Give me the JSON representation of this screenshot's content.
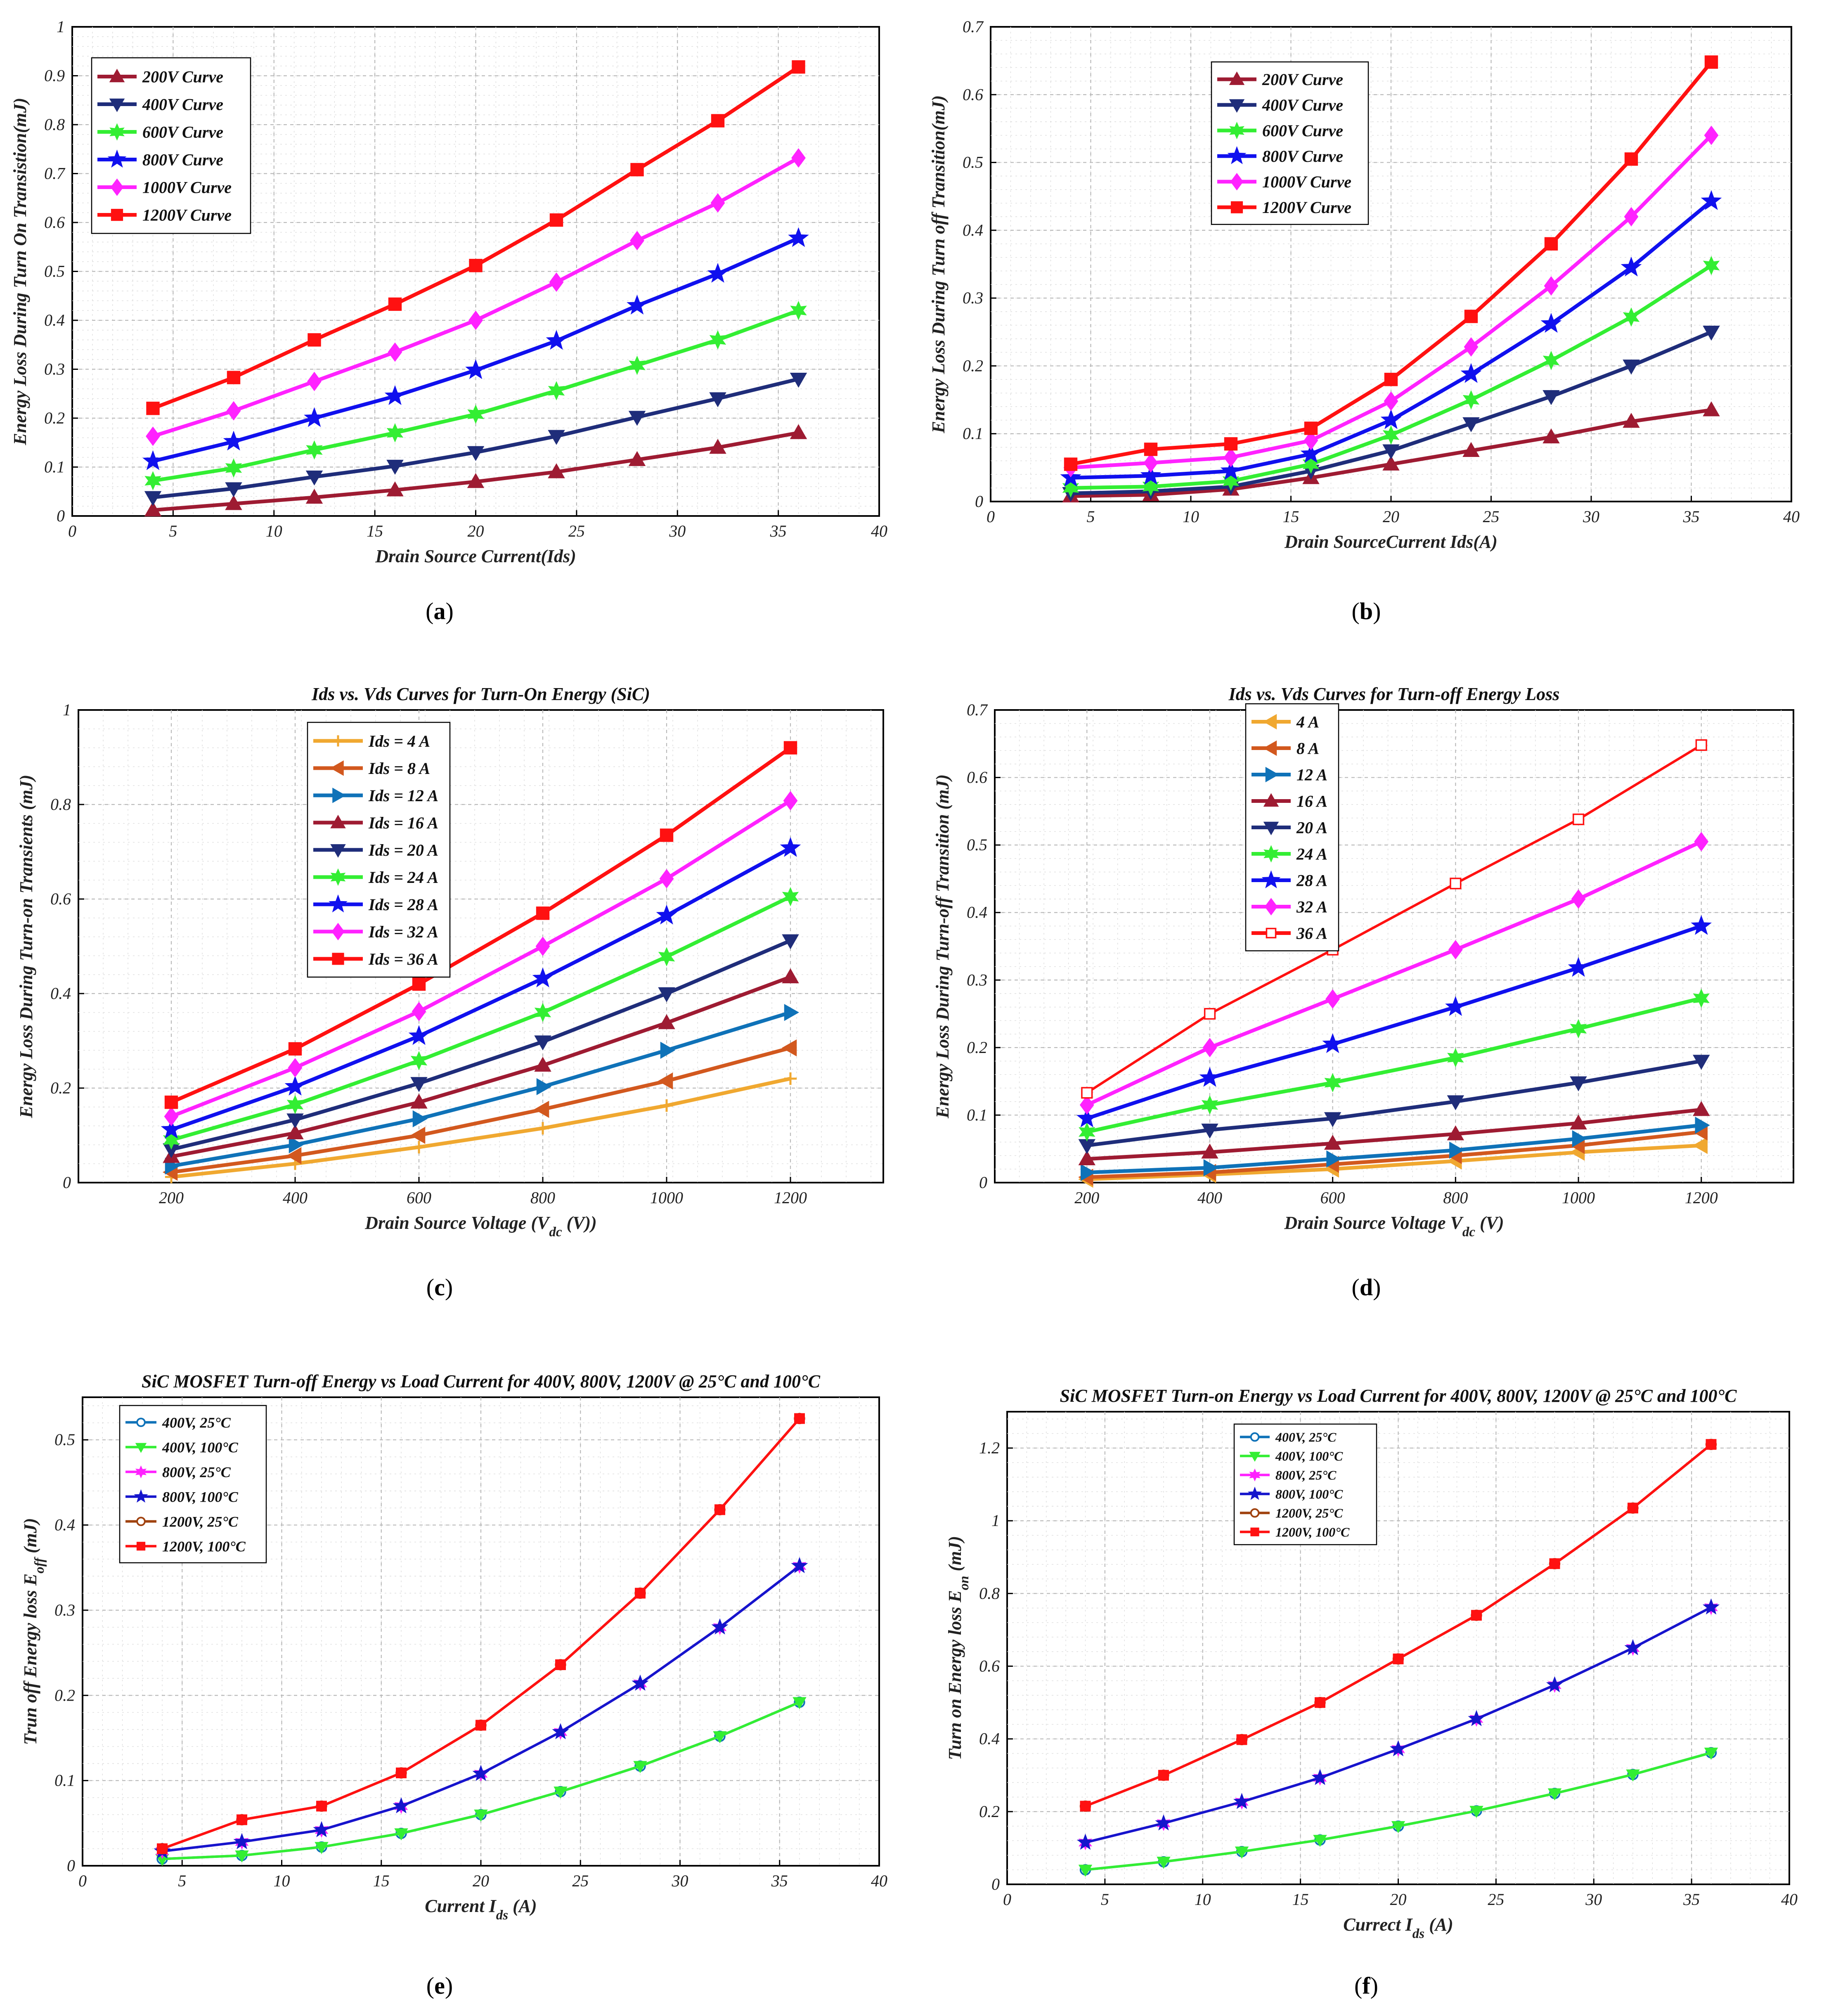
{
  "figure": {
    "captions": [
      {
        "open": "(",
        "letter": "a",
        "close": ")"
      },
      {
        "open": "(",
        "letter": "b",
        "close": ")"
      },
      {
        "open": "(",
        "letter": "c",
        "close": ")"
      },
      {
        "open": "(",
        "letter": "d",
        "close": ")"
      },
      {
        "open": "(",
        "letter": "e",
        "close": ")"
      },
      {
        "open": "(",
        "letter": "f",
        "close": ")"
      }
    ]
  },
  "chart_data": [
    {
      "id": "a",
      "type": "line",
      "title": "",
      "xlabel": [
        {
          "t": "Drain Source Current(Ids)"
        }
      ],
      "ylabel": [
        {
          "t": "Energy Loss During Turn On Transistion(mJ)"
        }
      ],
      "xlim": [
        0,
        40
      ],
      "ylim": [
        0,
        1
      ],
      "xticks": [
        0,
        5,
        10,
        15,
        20,
        25,
        30,
        35,
        40
      ],
      "yticks": [
        0,
        0.1,
        0.2,
        0.3,
        0.4,
        0.5,
        0.6,
        0.7,
        0.8,
        0.9,
        1
      ],
      "grid": true,
      "legend_position": "top-left",
      "x": [
        4,
        8,
        12,
        16,
        20,
        24,
        28,
        32,
        36
      ],
      "series": [
        {
          "name": "200V Curve",
          "color": "#9e1b32",
          "marker": "triangle-up",
          "values": [
            0.012,
            0.025,
            0.038,
            0.053,
            0.07,
            0.09,
            0.115,
            0.14,
            0.17
          ]
        },
        {
          "name": "400V Curve",
          "color": "#1f2d7a",
          "marker": "triangle-down",
          "values": [
            0.038,
            0.056,
            0.08,
            0.102,
            0.13,
            0.163,
            0.202,
            0.24,
            0.28
          ]
        },
        {
          "name": "600V Curve",
          "color": "#33ee33",
          "marker": "star6",
          "values": [
            0.072,
            0.098,
            0.135,
            0.17,
            0.208,
            0.256,
            0.308,
            0.36,
            0.42
          ]
        },
        {
          "name": "800V Curve",
          "color": "#1010ee",
          "marker": "star5",
          "values": [
            0.112,
            0.152,
            0.2,
            0.245,
            0.298,
            0.358,
            0.43,
            0.495,
            0.568
          ]
        },
        {
          "name": "1000V Curve",
          "color": "#ff22ff",
          "marker": "diamond",
          "values": [
            0.163,
            0.215,
            0.275,
            0.335,
            0.4,
            0.478,
            0.563,
            0.64,
            0.732
          ]
        },
        {
          "name": "1200V Curve",
          "color": "#ff1111",
          "marker": "square",
          "values": [
            0.22,
            0.283,
            0.36,
            0.433,
            0.512,
            0.605,
            0.708,
            0.808,
            0.918
          ]
        }
      ]
    },
    {
      "id": "b",
      "type": "line",
      "title": "",
      "xlabel": [
        {
          "t": "Drain SourceCurrent Ids(A)"
        }
      ],
      "ylabel": [
        {
          "t": "Energy Loss During Turn off Transition(mJ)"
        }
      ],
      "xlim": [
        0,
        40
      ],
      "ylim": [
        0,
        0.7
      ],
      "xticks": [
        0,
        5,
        10,
        15,
        20,
        25,
        30,
        35,
        40
      ],
      "yticks": [
        0,
        0.1,
        0.2,
        0.3,
        0.4,
        0.5,
        0.6,
        0.7
      ],
      "grid": true,
      "legend_position": "top-left",
      "x": [
        4,
        8,
        12,
        16,
        20,
        24,
        28,
        32,
        36
      ],
      "series": [
        {
          "name": "200V Curve",
          "color": "#9e1b32",
          "marker": "triangle-up",
          "values": [
            0.008,
            0.01,
            0.018,
            0.035,
            0.055,
            0.075,
            0.095,
            0.118,
            0.135
          ]
        },
        {
          "name": "400V Curve",
          "color": "#1f2d7a",
          "marker": "triangle-down",
          "values": [
            0.012,
            0.015,
            0.022,
            0.045,
            0.075,
            0.115,
            0.155,
            0.2,
            0.25
          ]
        },
        {
          "name": "600V Curve",
          "color": "#33ee33",
          "marker": "star6",
          "values": [
            0.02,
            0.022,
            0.03,
            0.055,
            0.098,
            0.15,
            0.208,
            0.272,
            0.348
          ]
        },
        {
          "name": "800V Curve",
          "color": "#1010ee",
          "marker": "star5",
          "values": [
            0.035,
            0.038,
            0.045,
            0.07,
            0.12,
            0.188,
            0.262,
            0.345,
            0.443
          ]
        },
        {
          "name": "1000V Curve",
          "color": "#ff22ff",
          "marker": "diamond",
          "values": [
            0.05,
            0.057,
            0.065,
            0.09,
            0.148,
            0.228,
            0.318,
            0.42,
            0.54
          ]
        },
        {
          "name": "1200V Curve",
          "color": "#ff1111",
          "marker": "square",
          "values": [
            0.055,
            0.077,
            0.085,
            0.108,
            0.18,
            0.273,
            0.38,
            0.505,
            0.648
          ]
        }
      ]
    },
    {
      "id": "c",
      "type": "line",
      "title": "Ids vs. Vds Curves for Turn-On Energy (SiC)",
      "xlabel": [
        {
          "t": "Drain Source Voltage ("
        },
        {
          "t": "V"
        },
        {
          "t": "dc",
          "sub": true
        },
        {
          "t": " (V))"
        }
      ],
      "ylabel": [
        {
          "t": "Energy Loss During Turn-on Transients (mJ)"
        }
      ],
      "xlim": [
        50,
        1350
      ],
      "ylim": [
        0,
        1
      ],
      "xticks": [
        200,
        400,
        600,
        800,
        1000,
        1200
      ],
      "yticks": [
        0,
        0.2,
        0.4,
        0.6,
        0.8,
        1
      ],
      "grid": true,
      "legend_position": "top-center",
      "x": [
        200,
        400,
        600,
        800,
        1000,
        1200
      ],
      "series": [
        {
          "name": "Ids = 4 A",
          "color": "#f0a830",
          "marker": "plus",
          "values": [
            0.012,
            0.04,
            0.075,
            0.115,
            0.163,
            0.22
          ]
        },
        {
          "name": "Ids = 8 A",
          "color": "#d2581e",
          "marker": "triangle-left",
          "values": [
            0.022,
            0.057,
            0.1,
            0.155,
            0.215,
            0.285
          ]
        },
        {
          "name": "Ids = 12 A",
          "color": "#0f72b8",
          "marker": "triangle-right",
          "values": [
            0.035,
            0.08,
            0.135,
            0.203,
            0.28,
            0.36
          ]
        },
        {
          "name": "Ids = 16 A",
          "color": "#9e1b32",
          "marker": "triangle-up",
          "values": [
            0.055,
            0.105,
            0.17,
            0.248,
            0.338,
            0.435
          ]
        },
        {
          "name": "Ids = 20 A",
          "color": "#1f2d7a",
          "marker": "triangle-down",
          "values": [
            0.07,
            0.133,
            0.21,
            0.298,
            0.4,
            0.512
          ]
        },
        {
          "name": "Ids = 24 A",
          "color": "#33ee33",
          "marker": "star6",
          "values": [
            0.09,
            0.165,
            0.258,
            0.36,
            0.478,
            0.605
          ]
        },
        {
          "name": "Ids = 28 A",
          "color": "#1010ee",
          "marker": "star5",
          "values": [
            0.112,
            0.203,
            0.31,
            0.432,
            0.565,
            0.708
          ]
        },
        {
          "name": "Ids = 32 A",
          "color": "#ff22ff",
          "marker": "diamond",
          "values": [
            0.14,
            0.243,
            0.362,
            0.5,
            0.643,
            0.808
          ]
        },
        {
          "name": "Ids = 36 A",
          "color": "#ff1111",
          "marker": "square",
          "values": [
            0.17,
            0.283,
            0.42,
            0.57,
            0.735,
            0.92
          ]
        }
      ]
    },
    {
      "id": "d",
      "type": "line",
      "title": "Ids vs. Vds Curves for Turn-off Energy Loss",
      "xlabel": [
        {
          "t": "Drain Source Voltage "
        },
        {
          "t": "V"
        },
        {
          "t": "dc",
          "sub": true
        },
        {
          "t": " (V)"
        }
      ],
      "ylabel": [
        {
          "t": "Energy Loss During Turn-off Transition (mJ)"
        }
      ],
      "xlim": [
        50,
        1350
      ],
      "ylim": [
        0,
        0.7
      ],
      "xticks": [
        200,
        400,
        600,
        800,
        1000,
        1200
      ],
      "yticks": [
        0,
        0.1,
        0.2,
        0.3,
        0.4,
        0.5,
        0.6,
        0.7
      ],
      "grid": true,
      "legend_position": "top-left",
      "x": [
        200,
        400,
        600,
        800,
        1000,
        1200
      ],
      "series": [
        {
          "name": "4 A",
          "color": "#f0a830",
          "marker": "triangle-left",
          "values": [
            0.005,
            0.012,
            0.02,
            0.032,
            0.045,
            0.055
          ]
        },
        {
          "name": "8 A",
          "color": "#d2581e",
          "marker": "triangle-left",
          "values": [
            0.008,
            0.015,
            0.027,
            0.04,
            0.055,
            0.075
          ]
        },
        {
          "name": "12 A",
          "color": "#0f72b8",
          "marker": "triangle-right",
          "values": [
            0.015,
            0.022,
            0.035,
            0.048,
            0.065,
            0.085
          ]
        },
        {
          "name": "16 A",
          "color": "#9e1b32",
          "marker": "triangle-up",
          "values": [
            0.035,
            0.045,
            0.058,
            0.072,
            0.088,
            0.108
          ]
        },
        {
          "name": "20 A",
          "color": "#1f2d7a",
          "marker": "triangle-down",
          "values": [
            0.055,
            0.078,
            0.095,
            0.12,
            0.148,
            0.18
          ]
        },
        {
          "name": "24 A",
          "color": "#33ee33",
          "marker": "star6",
          "values": [
            0.075,
            0.115,
            0.148,
            0.185,
            0.228,
            0.273
          ]
        },
        {
          "name": "28 A",
          "color": "#1010ee",
          "marker": "star5",
          "values": [
            0.095,
            0.155,
            0.205,
            0.26,
            0.318,
            0.38
          ]
        },
        {
          "name": "32 A",
          "color": "#ff22ff",
          "marker": "diamond",
          "values": [
            0.115,
            0.2,
            0.272,
            0.345,
            0.42,
            0.505
          ]
        },
        {
          "name": "36 A",
          "color": "#ff1111",
          "marker": "square-open",
          "values": [
            0.133,
            0.25,
            0.345,
            0.443,
            0.538,
            0.648
          ]
        }
      ]
    },
    {
      "id": "e",
      "type": "line",
      "title": "SiC MOSFET Turn-off Energy vs Load Current for 400V, 800V, 1200V @ 25°C and 100°C",
      "xlabel": [
        {
          "t": "Current "
        },
        {
          "t": "I"
        },
        {
          "t": "ds",
          "sub": true
        },
        {
          "t": " (A)"
        }
      ],
      "ylabel": [
        {
          "t": "Trun off Energy loss E"
        },
        {
          "t": "off",
          "sub": true
        },
        {
          "t": " (mJ)"
        }
      ],
      "xlim": [
        0,
        40
      ],
      "ylim": [
        0,
        0.55
      ],
      "xticks": [
        0,
        5,
        10,
        15,
        20,
        25,
        30,
        35,
        40
      ],
      "yticks": [
        0,
        0.1,
        0.2,
        0.3,
        0.4,
        0.5
      ],
      "grid": true,
      "legend_position": "top-left",
      "x": [
        4,
        8,
        12,
        16,
        20,
        24,
        28,
        32,
        36
      ],
      "series": [
        {
          "name": "400V, 25°C",
          "color": "#0f72b8",
          "marker": "circle",
          "values": [
            0.008,
            0.012,
            0.022,
            0.038,
            0.06,
            0.087,
            0.117,
            0.152,
            0.192
          ]
        },
        {
          "name": "400V, 100°C",
          "color": "#33ee33",
          "marker": "triangle-down",
          "values": [
            0.008,
            0.012,
            0.022,
            0.038,
            0.06,
            0.087,
            0.117,
            0.152,
            0.192
          ]
        },
        {
          "name": "800V, 25°C",
          "color": "#ff22ff",
          "marker": "star6",
          "values": [
            0.017,
            0.028,
            0.042,
            0.07,
            0.108,
            0.157,
            0.214,
            0.28,
            0.352
          ]
        },
        {
          "name": "800V, 100°C",
          "color": "#1515cc",
          "marker": "star5",
          "values": [
            0.017,
            0.028,
            0.042,
            0.07,
            0.108,
            0.157,
            0.214,
            0.28,
            0.352
          ]
        },
        {
          "name": "1200V, 25°C",
          "color": "#a0420f",
          "marker": "circle",
          "values": [
            0.02,
            0.054,
            0.07,
            0.109,
            0.165,
            0.236,
            0.32,
            0.418,
            0.525
          ]
        },
        {
          "name": "1200V, 100°C",
          "color": "#ff1111",
          "marker": "square",
          "values": [
            0.02,
            0.054,
            0.07,
            0.109,
            0.165,
            0.236,
            0.32,
            0.418,
            0.525
          ]
        }
      ]
    },
    {
      "id": "f",
      "type": "line",
      "title": "SiC MOSFET Turn-on Energy vs Load Current for 400V, 800V, 1200V @ 25°C and 100°C",
      "xlabel": [
        {
          "t": "Currect "
        },
        {
          "t": "I"
        },
        {
          "t": "ds",
          "sub": true
        },
        {
          "t": " (A)"
        }
      ],
      "ylabel": [
        {
          "t": "Turn on Energy loss E"
        },
        {
          "t": "on",
          "sub": true
        },
        {
          "t": " (mJ)"
        }
      ],
      "xlim": [
        0,
        40
      ],
      "ylim": [
        0,
        1.3
      ],
      "xticks": [
        0,
        5,
        10,
        15,
        20,
        25,
        30,
        35,
        40
      ],
      "yticks": [
        0,
        0.2,
        0.4,
        0.6,
        0.8,
        1,
        1.2
      ],
      "grid": true,
      "legend_position": "top-left",
      "x": [
        4,
        8,
        12,
        16,
        20,
        24,
        28,
        32,
        36
      ],
      "series": [
        {
          "name": "400V, 25°C",
          "color": "#0f72b8",
          "marker": "circle",
          "values": [
            0.04,
            0.062,
            0.09,
            0.122,
            0.16,
            0.202,
            0.25,
            0.302,
            0.362
          ]
        },
        {
          "name": "400V, 100°C",
          "color": "#33ee33",
          "marker": "triangle-down",
          "values": [
            0.04,
            0.062,
            0.09,
            0.122,
            0.16,
            0.202,
            0.25,
            0.302,
            0.362
          ]
        },
        {
          "name": "800V, 25°C",
          "color": "#ff22ff",
          "marker": "star6",
          "values": [
            0.115,
            0.168,
            0.227,
            0.293,
            0.372,
            0.455,
            0.548,
            0.65,
            0.762
          ]
        },
        {
          "name": "800V, 100°C",
          "color": "#1515cc",
          "marker": "star5",
          "values": [
            0.115,
            0.168,
            0.227,
            0.293,
            0.372,
            0.455,
            0.548,
            0.65,
            0.762
          ]
        },
        {
          "name": "1200V, 25°C",
          "color": "#a0420f",
          "marker": "circle",
          "values": [
            0.215,
            0.3,
            0.398,
            0.5,
            0.62,
            0.74,
            0.882,
            1.035,
            1.21
          ]
        },
        {
          "name": "1200V, 100°C",
          "color": "#ff1111",
          "marker": "square",
          "values": [
            0.215,
            0.3,
            0.398,
            0.5,
            0.62,
            0.74,
            0.882,
            1.035,
            1.21
          ]
        }
      ]
    }
  ]
}
